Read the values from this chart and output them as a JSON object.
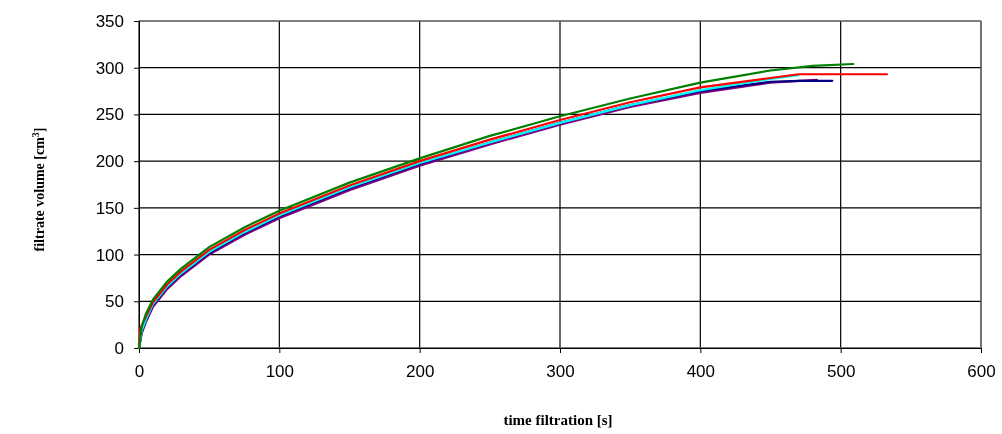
{
  "chart_data": {
    "type": "line",
    "xlabel": "time filtration [s]",
    "ylabel": "filtrate volume [cm$^{3}$]",
    "xlim": [
      0,
      600
    ],
    "ylim": [
      0,
      350
    ],
    "xticks": [
      0,
      100,
      200,
      300,
      400,
      500,
      600
    ],
    "yticks": [
      0,
      50,
      100,
      150,
      200,
      250,
      300,
      350
    ],
    "grid": true,
    "marker": "none",
    "line_style": "solid",
    "series": [
      {
        "color": "#800080",
        "x": [
          0,
          2,
          5,
          10,
          20,
          30,
          50,
          75,
          100,
          150,
          200,
          250,
          300,
          350,
          400,
          450,
          483
        ],
        "values": [
          0,
          16,
          28,
          44,
          63,
          77,
          100,
          121,
          139,
          169,
          195,
          218,
          239,
          258,
          273,
          284,
          287
        ]
      },
      {
        "color": "#000080",
        "x": [
          0,
          2,
          5,
          10,
          20,
          30,
          50,
          75,
          100,
          150,
          200,
          250,
          300,
          350,
          400,
          450,
          470,
          494
        ],
        "values": [
          0,
          18,
          30,
          46,
          65,
          79,
          102,
          123,
          141,
          171,
          197,
          220,
          241,
          260,
          275,
          285,
          286,
          286
        ]
      },
      {
        "color": "#00ffff",
        "x": [
          0,
          2,
          5,
          10,
          20,
          30,
          50,
          75,
          100,
          150,
          200,
          250,
          300,
          350,
          400,
          450,
          470
        ],
        "values": [
          0,
          19,
          31,
          47,
          66,
          80,
          103,
          124,
          142,
          172,
          198,
          220,
          241,
          260,
          276,
          288,
          292
        ]
      },
      {
        "color": "#ff0000",
        "x": [
          0,
          1,
          5,
          10,
          20,
          30,
          50,
          75,
          100,
          150,
          200,
          250,
          300,
          350,
          400,
          450,
          470,
          533
        ],
        "values": [
          0,
          21,
          34,
          49,
          68,
          82,
          105,
          126,
          144,
          174,
          200,
          223,
          244,
          263,
          279,
          289,
          293,
          293
        ]
      },
      {
        "color": "#008000",
        "x": [
          0,
          2,
          5,
          10,
          20,
          30,
          50,
          75,
          100,
          150,
          200,
          250,
          300,
          350,
          400,
          450,
          480,
          509
        ],
        "values": [
          0,
          23,
          37,
          52,
          71,
          85,
          108,
          129,
          147,
          177,
          203,
          227,
          248,
          267,
          284,
          297,
          302,
          304
        ]
      }
    ]
  }
}
